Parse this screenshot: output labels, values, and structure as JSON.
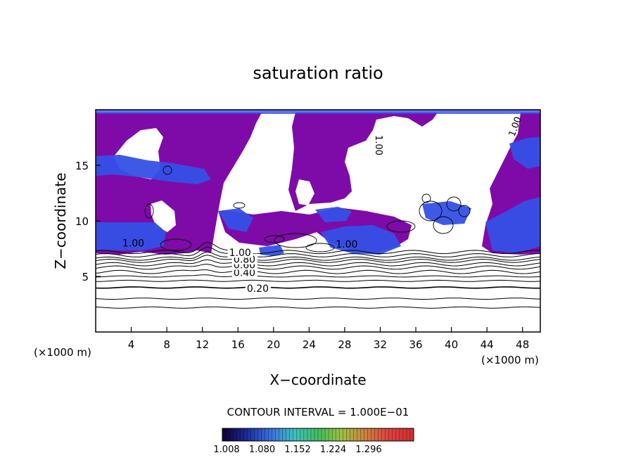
{
  "chart_data": {
    "type": "contour",
    "title": "saturation ratio",
    "xlabel": "X−coordinate",
    "ylabel": "Z−coordinate",
    "x_unit_left": "(×1000 m)",
    "x_unit_right": "(×1000 m)",
    "xlim": [
      0,
      50
    ],
    "ylim": [
      0,
      20
    ],
    "x_ticks": [
      4,
      8,
      12,
      16,
      20,
      24,
      28,
      32,
      36,
      40,
      44,
      48
    ],
    "y_ticks": [
      5,
      10,
      15
    ],
    "contour_interval_text": "CONTOUR INTERVAL = 1.000E−01",
    "contour_levels": [
      {
        "label": "0.20",
        "z": 4.0
      },
      {
        "label": "0.40",
        "z": 5.4
      },
      {
        "label": "0.60",
        "z": 6.1
      },
      {
        "label": "0.80",
        "z": 6.6
      },
      {
        "label": "1.00",
        "z": 7.2
      }
    ],
    "colorbar": {
      "labels": [
        "1.008",
        "1.080",
        "1.152",
        "1.224",
        "1.296"
      ],
      "colors": [
        "#100030",
        "#1a2a9a",
        "#3a70e0",
        "#40c0c0",
        "#40c060",
        "#a0c040",
        "#d08040",
        "#e04040",
        "#d03030"
      ]
    },
    "fill_colors": {
      "saturated": "#7e0ba8",
      "supersaturated": "#3550e6"
    }
  }
}
